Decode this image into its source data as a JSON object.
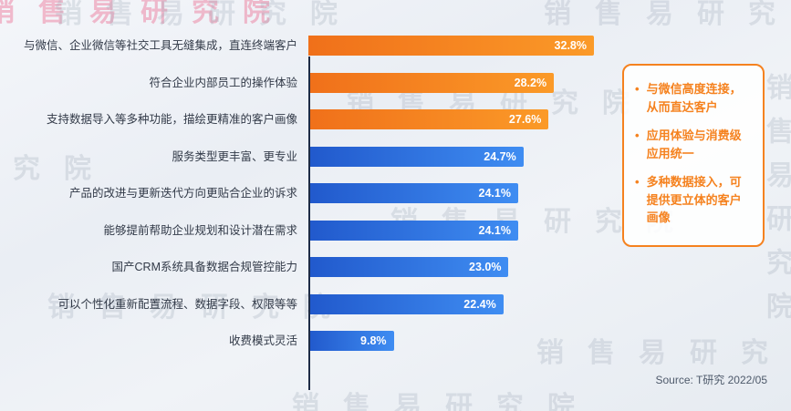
{
  "watermark": {
    "text": "销售易研究院"
  },
  "chart_data": {
    "type": "bar",
    "orientation": "horizontal",
    "title": "",
    "xlabel": "",
    "ylabel": "",
    "xlim": [
      0,
      35
    ],
    "grid": false,
    "legend": false,
    "categories": [
      "与微信、企业微信等社交工具无缝集成，直连终端客户",
      "符合企业内部员工的操作体验",
      "支持数据导入等多种功能，描绘更精准的客户画像",
      "服务类型更丰富、更专业",
      "产品的改进与更新迭代方向更贴合企业的诉求",
      "能够提前帮助企业规划和设计潜在需求",
      "国产CRM系统具备数据合规管控能力",
      "可以个性化重新配置流程、数据字段、权限等等",
      "收费模式灵活"
    ],
    "values": [
      32.8,
      28.2,
      27.6,
      24.7,
      24.1,
      24.1,
      23.0,
      22.4,
      9.8
    ],
    "value_labels": [
      "32.8%",
      "28.2%",
      "27.6%",
      "24.7%",
      "24.1%",
      "24.1%",
      "23.0%",
      "22.4%",
      "9.8%"
    ],
    "bar_colors": [
      "orange",
      "orange",
      "orange",
      "blue",
      "blue",
      "blue",
      "blue",
      "blue",
      "blue"
    ]
  },
  "callout": {
    "bullet": "•",
    "items": [
      "与微信高度连接，从而直达客户",
      "应用体验与消费级应用统一",
      "多种数据接入，可提供更立体的客户画像"
    ]
  },
  "source": "Source: T研究 2022/05",
  "colors": {
    "accent_orange": "#f5821f",
    "bar_orange_start": "#f0701a",
    "bar_orange_end": "#fb9a28",
    "bar_blue_start": "#2159cc",
    "bar_blue_end": "#3f8df2",
    "axis": "#1d2b45",
    "label_text": "#323a48",
    "value_text": "#ffffff",
    "watermark_gray": "rgba(158,168,184,0.28)",
    "watermark_pink": "rgba(235,95,135,0.40)"
  }
}
